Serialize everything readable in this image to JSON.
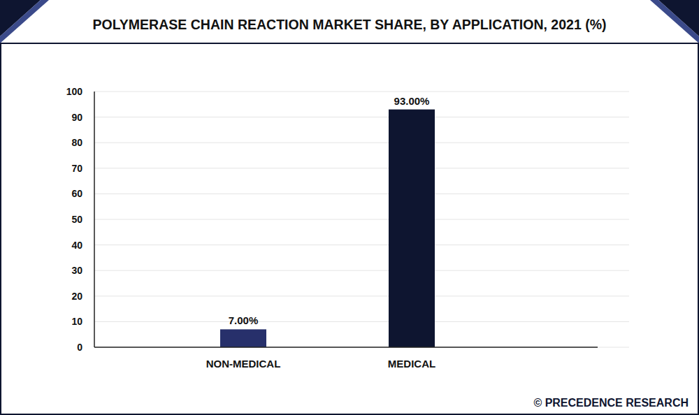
{
  "chart_data": {
    "type": "bar",
    "title": "POLYMERASE CHAIN REACTION MARKET SHARE, BY APPLICATION, 2021 (%)",
    "categories": [
      "NON-MEDICAL",
      "MEDICAL"
    ],
    "values": [
      7,
      93
    ],
    "value_labels": [
      "7.00%",
      "93.00%"
    ],
    "colors": [
      "#27306b",
      "#0e1530"
    ],
    "ylim": [
      0,
      100
    ],
    "yticks": [
      0,
      10,
      20,
      30,
      40,
      50,
      60,
      70,
      80,
      90,
      100
    ],
    "grid": true,
    "data_labels": true,
    "source": "© PRECEDENCE RESEARCH"
  }
}
